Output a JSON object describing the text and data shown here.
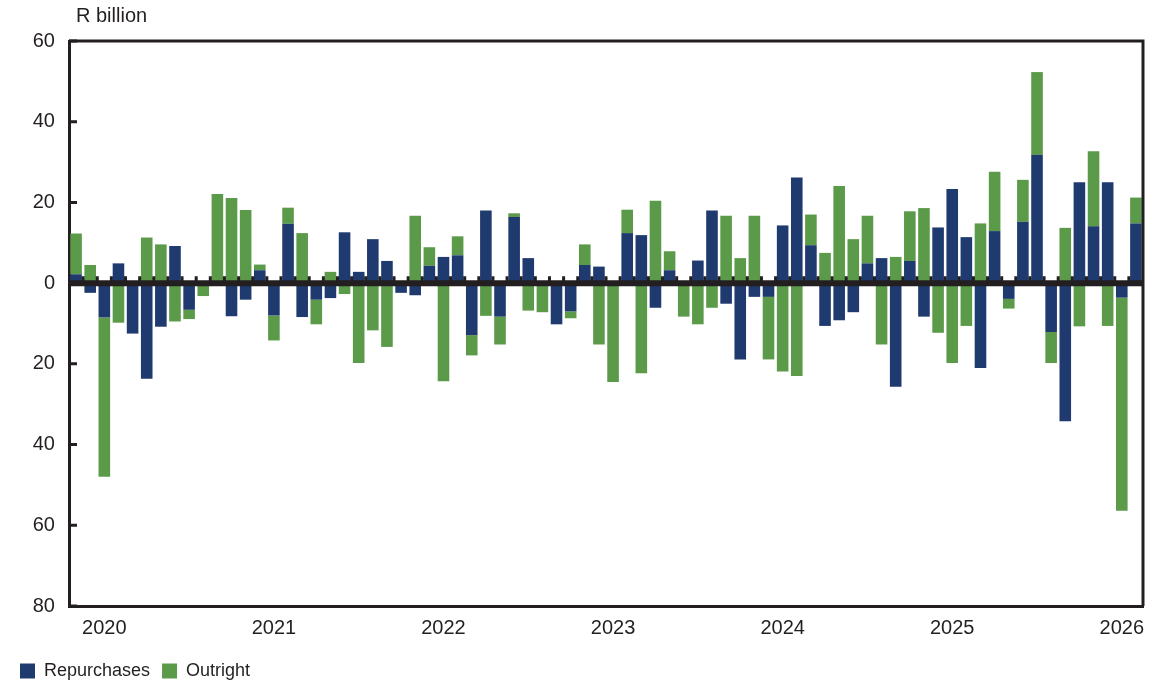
{
  "chart_data": {
    "type": "bar",
    "ylabel": "R billion",
    "stacked": true,
    "legend": "bottom left",
    "categories": [
      null,
      null,
      "2020",
      null,
      null,
      null,
      null,
      null,
      null,
      null,
      null,
      null,
      null,
      null,
      "2021",
      null,
      null,
      null,
      null,
      null,
      null,
      null,
      null,
      null,
      null,
      null,
      "2022",
      null,
      null,
      null,
      null,
      null,
      null,
      null,
      null,
      null,
      null,
      null,
      "2023",
      null,
      null,
      null,
      null,
      null,
      null,
      null,
      null,
      null,
      null,
      null,
      "2024",
      null,
      null,
      null,
      null,
      null,
      null,
      null,
      null,
      null,
      null,
      null,
      "2025",
      null,
      null,
      null,
      null,
      null,
      null,
      null,
      null,
      null,
      null,
      null,
      "2026",
      null
    ],
    "series": [
      {
        "name": "Repurchases",
        "color": "#1f3a6e",
        "values": [
          2.2,
          -2.4,
          -8.5,
          4.9,
          -12.5,
          -23.7,
          -10.8,
          9.2,
          -6.6,
          null,
          null,
          -8.2,
          -4.1,
          3.2,
          -8.0,
          14.7,
          -8.4,
          -4.1,
          -3.7,
          12.6,
          2.8,
          10.9,
          5.5,
          -2.4,
          -3.0,
          4.3,
          6.5,
          6.9,
          -12.9,
          18.0,
          -8.3,
          16.4,
          6.2,
          0,
          -10.2,
          -7.0,
          4.5,
          4.1,
          0,
          12.4,
          11.9,
          -6.1,
          3.2,
          0,
          5.6,
          18.0,
          -5.1,
          -18.9,
          -3.4,
          -3.4,
          14.3,
          26.2,
          9.4,
          -10.6,
          -9.2,
          -7.2,
          4.9,
          6.2,
          -25.7,
          5.5,
          -8.3,
          13.8,
          23.3,
          11.4,
          -21.0,
          12.9,
          -3.9,
          15.2,
          31.8,
          -12.1,
          -34.2,
          25.0,
          14.1,
          25.0,
          -3.6,
          14.8
        ]
      },
      {
        "name": "Outright",
        "color": "#5a9a48",
        "values": [
          10.1,
          4.5,
          -39.5,
          -9.8,
          0,
          11.3,
          9.6,
          -9.5,
          -2.3,
          -3.2,
          22.1,
          21.1,
          18.1,
          1.4,
          -6.2,
          4.0,
          12.4,
          -6.1,
          2.8,
          -2.7,
          -19.8,
          -11.7,
          -15.8,
          null,
          16.7,
          4.6,
          -24.3,
          4.7,
          -5.0,
          -8.1,
          -6.9,
          0.9,
          -6.8,
          -7.2,
          null,
          -1.7,
          5.1,
          -15.2,
          -24.5,
          5.8,
          -22.3,
          20.4,
          4.7,
          -8.3,
          -10.2,
          -6.1,
          16.7,
          6.2,
          16.7,
          -15.5,
          -21.9,
          -23.0,
          7.6,
          7.5,
          24.1,
          10.9,
          11.8,
          -15.2,
          6.5,
          12.3,
          18.6,
          -12.3,
          -19.8,
          -10.6,
          14.8,
          14.7,
          -2.4,
          10.4,
          20.5,
          -7.7,
          13.7,
          -10.7,
          18.6,
          -10.6,
          -52.8,
          6.4
        ]
      }
    ],
    "ylim": [
      -80,
      60
    ],
    "yticks": [
      60,
      40,
      20,
      0,
      {
        "value": -20,
        "label": "20"
      },
      {
        "value": -40,
        "label": "40"
      },
      {
        "value": -60,
        "label": "60"
      },
      {
        "value": -80,
        "label": "80"
      }
    ]
  }
}
